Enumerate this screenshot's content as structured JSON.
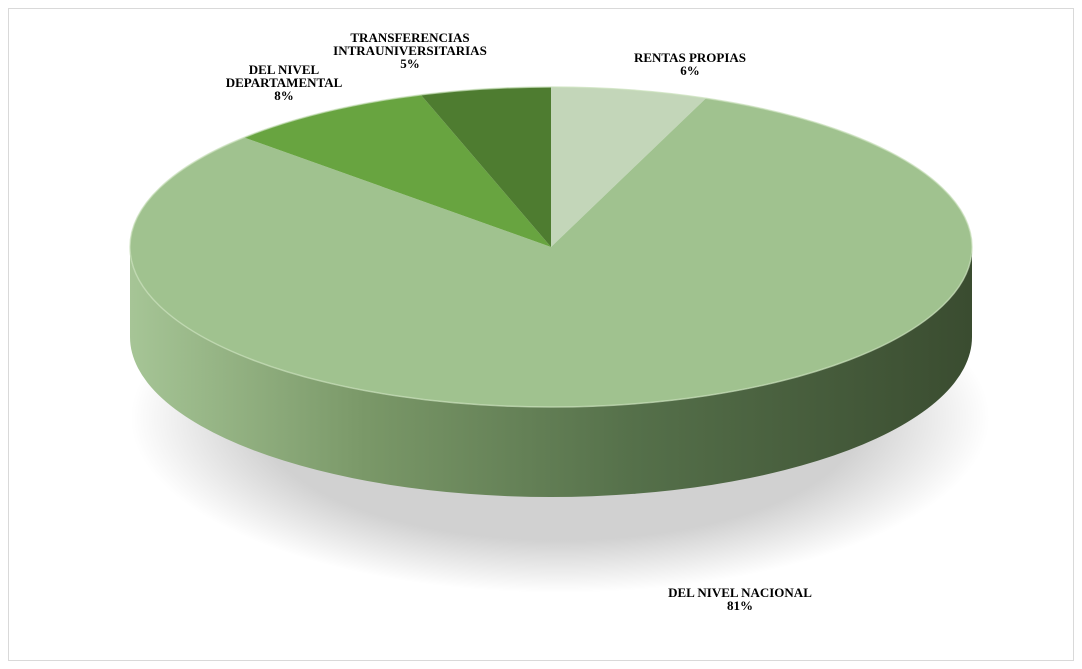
{
  "chart_data": {
    "type": "pie",
    "title": "",
    "slices": [
      {
        "label_lines": [
          "RENTAS PROPIAS"
        ],
        "pct_label": "6%",
        "value": 6,
        "color": "#c3d6b9"
      },
      {
        "label_lines": [
          "DEL NIVEL NACIONAL"
        ],
        "pct_label": "81%",
        "value": 81,
        "color": "#a0c28f"
      },
      {
        "label_lines": [
          "DEL NIVEL",
          "DEPARTAMENTAL"
        ],
        "pct_label": "8%",
        "value": 8,
        "color": "#68a440"
      },
      {
        "label_lines": [
          "TRANSFERENCIAS",
          "INTRAUNIVERSITARIAS"
        ],
        "pct_label": "5%",
        "value": 5,
        "color": "#4e7c30"
      }
    ],
    "legend": "none",
    "style": "3d"
  }
}
